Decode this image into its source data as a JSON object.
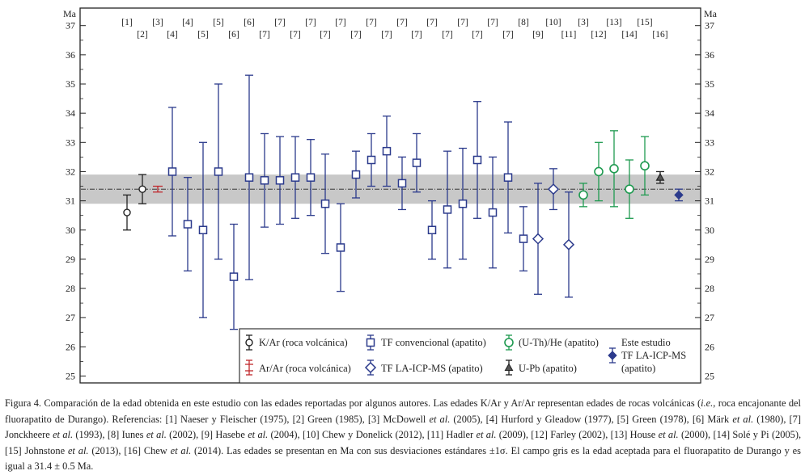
{
  "chart_data": {
    "type": "scatter",
    "ylabel": "Ma",
    "ylim": [
      24.8,
      37.45
    ],
    "yticks": [
      25,
      26,
      27,
      28,
      29,
      30,
      31,
      32,
      33,
      34,
      35,
      36,
      37
    ],
    "accepted_band": {
      "value": 31.4,
      "error": 0.5
    },
    "points": [
      {
        "ref": "[1]",
        "method": "KAr",
        "age": 30.6,
        "lo": 30.0,
        "hi": 31.2
      },
      {
        "ref": "[2]",
        "method": "KAr",
        "age": 31.4,
        "lo": 30.9,
        "hi": 31.9
      },
      {
        "ref": "[3]",
        "method": "ArAr",
        "age": 31.4,
        "lo": 31.3,
        "hi": 31.5
      },
      {
        "ref": "[4]",
        "method": "TFconv",
        "age": 32.0,
        "lo": 29.8,
        "hi": 34.2
      },
      {
        "ref": "[4]",
        "method": "TFconv",
        "age": 30.2,
        "lo": 28.6,
        "hi": 31.8
      },
      {
        "ref": "[5]",
        "method": "TFconv",
        "age": 30.0,
        "lo": 27.0,
        "hi": 33.0
      },
      {
        "ref": "[5]",
        "method": "TFconv",
        "age": 32.0,
        "lo": 29.0,
        "hi": 35.0
      },
      {
        "ref": "[6]",
        "method": "TFconv",
        "age": 28.4,
        "lo": 26.6,
        "hi": 30.2
      },
      {
        "ref": "[6]",
        "method": "TFconv",
        "age": 31.8,
        "lo": 28.3,
        "hi": 35.3
      },
      {
        "ref": "[7]",
        "method": "TFconv",
        "age": 31.7,
        "lo": 30.1,
        "hi": 33.3
      },
      {
        "ref": "[7]",
        "method": "TFconv",
        "age": 31.7,
        "lo": 30.2,
        "hi": 33.2
      },
      {
        "ref": "[7]",
        "method": "TFconv",
        "age": 31.8,
        "lo": 30.4,
        "hi": 33.2
      },
      {
        "ref": "[7]",
        "method": "TFconv",
        "age": 31.8,
        "lo": 30.5,
        "hi": 33.1
      },
      {
        "ref": "[7]",
        "method": "TFconv",
        "age": 30.9,
        "lo": 29.2,
        "hi": 32.6
      },
      {
        "ref": "[7]",
        "method": "TFconv",
        "age": 29.4,
        "lo": 27.9,
        "hi": 30.9
      },
      {
        "ref": "[7]",
        "method": "TFconv",
        "age": 31.9,
        "lo": 31.1,
        "hi": 32.7
      },
      {
        "ref": "[7]",
        "method": "TFconv",
        "age": 32.4,
        "lo": 31.5,
        "hi": 33.3
      },
      {
        "ref": "[7]",
        "method": "TFconv",
        "age": 32.7,
        "lo": 31.5,
        "hi": 33.9
      },
      {
        "ref": "[7]",
        "method": "TFconv",
        "age": 31.6,
        "lo": 30.7,
        "hi": 32.5
      },
      {
        "ref": "[7]",
        "method": "TFconv",
        "age": 32.3,
        "lo": 31.3,
        "hi": 33.3
      },
      {
        "ref": "[7]",
        "method": "TFconv",
        "age": 30.0,
        "lo": 29.0,
        "hi": 31.0
      },
      {
        "ref": "[7]",
        "method": "TFconv",
        "age": 30.7,
        "lo": 28.7,
        "hi": 32.7
      },
      {
        "ref": "[7]",
        "method": "TFconv",
        "age": 30.9,
        "lo": 29.0,
        "hi": 32.8
      },
      {
        "ref": "[7]",
        "method": "TFconv",
        "age": 32.4,
        "lo": 30.4,
        "hi": 34.4
      },
      {
        "ref": "[7]",
        "method": "TFconv",
        "age": 30.6,
        "lo": 28.7,
        "hi": 32.5
      },
      {
        "ref": "[7]",
        "method": "TFconv",
        "age": 31.8,
        "lo": 29.9,
        "hi": 33.7
      },
      {
        "ref": "[8]",
        "method": "TFconv",
        "age": 29.7,
        "lo": 28.6,
        "hi": 30.8
      },
      {
        "ref": "[9]",
        "method": "TFLA",
        "age": 29.7,
        "lo": 27.8,
        "hi": 31.6
      },
      {
        "ref": "[10]",
        "method": "TFLA",
        "age": 31.4,
        "lo": 30.7,
        "hi": 32.1
      },
      {
        "ref": "[11]",
        "method": "TFLA",
        "age": 29.5,
        "lo": 27.7,
        "hi": 31.3
      },
      {
        "ref": "[3]",
        "method": "UThHe",
        "age": 31.2,
        "lo": 30.8,
        "hi": 31.6
      },
      {
        "ref": "[12]",
        "method": "UThHe",
        "age": 32.0,
        "lo": 31.0,
        "hi": 33.0
      },
      {
        "ref": "[13]",
        "method": "UThHe",
        "age": 32.1,
        "lo": 30.8,
        "hi": 33.4
      },
      {
        "ref": "[14]",
        "method": "UThHe",
        "age": 31.4,
        "lo": 30.4,
        "hi": 32.4
      },
      {
        "ref": "[15]",
        "method": "UThHe",
        "age": 32.2,
        "lo": 31.2,
        "hi": 33.2
      },
      {
        "ref": "[16]",
        "method": "UPb",
        "age": 31.8,
        "lo": 31.6,
        "hi": 32.0
      },
      {
        "ref": "",
        "method": "Este",
        "age": 31.2,
        "lo": 31.0,
        "hi": 31.4
      }
    ],
    "top_refs": [
      {
        "label": "[1]",
        "row": 0
      },
      {
        "label": "[2]",
        "row": 1
      },
      {
        "label": "[3]",
        "row": 0
      },
      {
        "label": "[4]",
        "row": 1
      },
      {
        "label": "[4]",
        "row": 0
      },
      {
        "label": "[5]",
        "row": 1
      },
      {
        "label": "[5]",
        "row": 0
      },
      {
        "label": "[6]",
        "row": 1
      },
      {
        "label": "[6]",
        "row": 0
      },
      {
        "label": "[7]",
        "row": 1
      },
      {
        "label": "[7]",
        "row": 0
      },
      {
        "label": "[7]",
        "row": 1
      },
      {
        "label": "[7]",
        "row": 0
      },
      {
        "label": "[7]",
        "row": 1
      },
      {
        "label": "[7]",
        "row": 0
      },
      {
        "label": "[7]",
        "row": 1
      },
      {
        "label": "[7]",
        "row": 0
      },
      {
        "label": "[7]",
        "row": 1
      },
      {
        "label": "[7]",
        "row": 0
      },
      {
        "label": "[7]",
        "row": 1
      },
      {
        "label": "[7]",
        "row": 0
      },
      {
        "label": "[7]",
        "row": 1
      },
      {
        "label": "[7]",
        "row": 0
      },
      {
        "label": "[7]",
        "row": 1
      },
      {
        "label": "[7]",
        "row": 0
      },
      {
        "label": "[7]",
        "row": 1
      },
      {
        "label": "[8]",
        "row": 0
      },
      {
        "label": "[9]",
        "row": 1
      },
      {
        "label": "[10]",
        "row": 0
      },
      {
        "label": "[11]",
        "row": 1
      },
      {
        "label": "[3]",
        "row": 0
      },
      {
        "label": "[12]",
        "row": 1
      },
      {
        "label": "[13]",
        "row": 0
      },
      {
        "label": "[14]",
        "row": 1
      },
      {
        "label": "[15]",
        "row": 0
      },
      {
        "label": "[16]",
        "row": 1
      }
    ],
    "legend": {
      "kar": "K/Ar (roca volcánica)",
      "arar": "Ar/Ar (roca volcánica)",
      "tfconv": "TF convencional (apatito)",
      "tfla": "TF LA-ICP-MS (apatito)",
      "uthhe": "(U-Th)/He (apatito)",
      "upb": "U-Pb (apatito)",
      "este1": "Este estudio",
      "este2": "TF LA-ICP-MS",
      "este3": "(apatito)"
    },
    "colors": {
      "black": "#222222",
      "red": "#c0282d",
      "navy": "#2b3a8c",
      "green": "#1f9a50",
      "band": "#c8c8c8"
    }
  },
  "caption": {
    "p1": "Figura 4. Comparación de la edad obtenida en este estudio con las edades reportadas por algunos autores. Las edades K/Ar y Ar/Ar representan edades de rocas volcánicas (",
    "ie": "i.e.",
    "p2": ", roca encajonante del fluorapatito de Durango). Referencias: [1] Naeser y Fleischer (1975), [2] Green (1985), [3] McDowell ",
    "etal1": "et al.",
    "p3": " (2005), [4] Hurford y Gleadow (1977), [5] Green (1978), [6] Märk ",
    "etal2": "et al.",
    "p4": " (1980), [7] Jonckheere ",
    "etal3": "et al.",
    "p5": " (1993), [8] Iunes ",
    "etal4": "et al.",
    "p6": " (2002), [9] Hasebe ",
    "etal5": "et al.",
    "p7": " (2004), [10] Chew y Donelick (2012), [11] Hadler ",
    "etal6": "et al.",
    "p8": " (2009), [12] Farley (2002), [13] House ",
    "etal7": "et al.",
    "p9": " (2000), [14] Solé y Pi (2005), [15] Johnstone ",
    "etal8": "et al.",
    "p10": " (2013), [16] Chew ",
    "etal9": "et al.",
    "p11": " (2014). Las edades se presentan en Ma con sus desviaciones estándares ±1σ. El campo gris es la edad aceptada para el fluorapatito de Durango y es igual a 31.4 ± 0.5 Ma."
  }
}
